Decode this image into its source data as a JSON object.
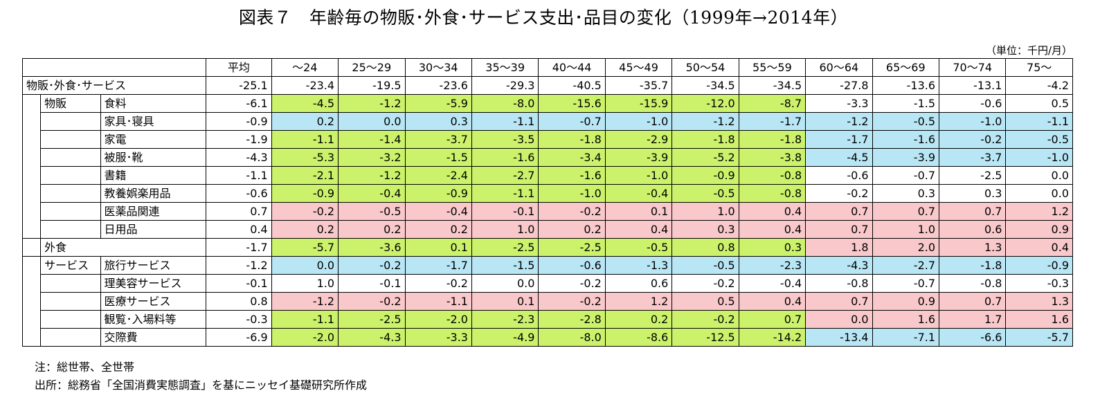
{
  "title": "図表７　年齢毎の物販･外食･サービス支出･品目の変化（1999年→2014年）",
  "unit": "（単位：千円/月）",
  "headers": [
    "平均",
    "～24",
    "25～29",
    "30～34",
    "35～39",
    "40～44",
    "45～49",
    "50～54",
    "55～59",
    "60～64",
    "65～69",
    "70～74",
    "75～"
  ],
  "rows": [
    {
      "group": "物販･外食･サービス",
      "values": [
        "-25.1",
        "-23.4",
        "-19.5",
        "-23.6",
        "-29.3",
        "-40.5",
        "-35.7",
        "-34.5",
        "-34.5",
        "-27.8",
        "-13.6",
        "-13.1",
        "-4.2"
      ]
    },
    {
      "group": "物販",
      "item": "食料",
      "values": [
        "-6.1",
        "-4.5",
        "-1.2",
        "-5.9",
        "-8.0",
        "-15.6",
        "-15.9",
        "-12.0",
        "-8.7",
        "-3.3",
        "-1.5",
        "-0.6",
        "0.5"
      ]
    },
    {
      "item": "家具･寝具",
      "values": [
        "-0.9",
        "0.2",
        "0.0",
        "0.3",
        "-1.1",
        "-0.7",
        "-1.0",
        "-1.2",
        "-1.7",
        "-1.2",
        "-0.5",
        "-1.0",
        "-1.1"
      ]
    },
    {
      "item": "家電",
      "values": [
        "-1.9",
        "-1.1",
        "-1.4",
        "-3.7",
        "-3.5",
        "-1.8",
        "-2.9",
        "-1.8",
        "-1.8",
        "-1.7",
        "-1.6",
        "-0.2",
        "-0.5"
      ]
    },
    {
      "item": "被服･靴",
      "values": [
        "-4.3",
        "-5.3",
        "-3.2",
        "-1.5",
        "-1.6",
        "-3.4",
        "-3.9",
        "-5.2",
        "-3.8",
        "-4.5",
        "-3.9",
        "-3.7",
        "-1.0"
      ]
    },
    {
      "item": "書籍",
      "values": [
        "-1.1",
        "-2.1",
        "-1.2",
        "-2.4",
        "-2.7",
        "-1.6",
        "-1.0",
        "-0.9",
        "-0.8",
        "-0.6",
        "-0.7",
        "-2.5",
        "0.0"
      ]
    },
    {
      "item": "教養娯楽用品",
      "values": [
        "-0.6",
        "-0.9",
        "-0.4",
        "-0.9",
        "-1.1",
        "-1.0",
        "-0.4",
        "-0.5",
        "-0.8",
        "-0.2",
        "0.3",
        "0.3",
        "0.0"
      ]
    },
    {
      "item": "医薬品関連",
      "values": [
        "0.7",
        "-0.2",
        "-0.5",
        "-0.4",
        "-0.1",
        "-0.2",
        "0.1",
        "1.0",
        "0.4",
        "0.7",
        "0.7",
        "0.7",
        "1.2"
      ]
    },
    {
      "item": "日用品",
      "values": [
        "0.4",
        "0.2",
        "0.2",
        "0.2",
        "1.0",
        "0.2",
        "0.4",
        "0.3",
        "0.4",
        "0.7",
        "1.0",
        "0.6",
        "0.9"
      ]
    },
    {
      "group": "外食",
      "values": [
        "-1.7",
        "-5.7",
        "-3.6",
        "0.1",
        "-2.5",
        "-2.5",
        "-0.5",
        "0.8",
        "0.3",
        "1.8",
        "2.0",
        "1.3",
        "0.4"
      ]
    },
    {
      "group": "サービス",
      "item": "旅行サービス",
      "values": [
        "-1.2",
        "0.0",
        "-0.2",
        "-1.7",
        "-1.5",
        "-0.6",
        "-1.3",
        "-0.5",
        "-2.3",
        "-4.3",
        "-2.7",
        "-1.8",
        "-0.9"
      ]
    },
    {
      "item": "理美容サービス",
      "values": [
        "-0.1",
        "1.0",
        "-0.1",
        "-0.2",
        "0.0",
        "-0.2",
        "0.6",
        "-0.2",
        "-0.4",
        "-0.8",
        "-0.7",
        "-0.8",
        "-0.3"
      ]
    },
    {
      "item": "医療サービス",
      "values": [
        "0.8",
        "-1.2",
        "-0.2",
        "-1.1",
        "0.1",
        "-0.2",
        "1.2",
        "0.5",
        "0.4",
        "0.7",
        "0.9",
        "0.7",
        "1.3"
      ]
    },
    {
      "item": "観覧･入場料等",
      "values": [
        "-0.3",
        "-1.1",
        "-2.5",
        "-2.0",
        "-2.3",
        "-2.8",
        "0.2",
        "-0.2",
        "0.7",
        "0.0",
        "1.6",
        "1.7",
        "1.6"
      ]
    },
    {
      "item": "交際費",
      "values": [
        "-6.9",
        "-2.0",
        "-4.3",
        "-3.3",
        "-4.9",
        "-8.0",
        "-8.6",
        "-12.5",
        "-14.2",
        "-13.4",
        "-7.1",
        "-6.6",
        "-5.7"
      ]
    }
  ],
  "highlight": {
    "green": "#ccf26b",
    "blue": "#b9e6f5",
    "pink": "#f8c8cb",
    "row_styles": [
      "",
      "g",
      "b",
      "g",
      "g",
      "g",
      "g",
      "p",
      "p",
      "g",
      "b",
      "",
      "p",
      "g",
      "g"
    ],
    "row_styles_60plus": [
      "",
      "",
      "b",
      "b",
      "b",
      "",
      "",
      "p",
      "p",
      "p",
      "b",
      "",
      "p",
      "p",
      "b"
    ]
  },
  "notes": [
    "注：総世帯、全世帯",
    "出所：総務省「全国消費実態調査」を基にニッセイ基礎研究所作成"
  ],
  "chart_data": {
    "type": "table",
    "title": "図表７　年齢毎の物販･外食･サービス支出･品目の変化（1999年→2014年）",
    "unit": "千円/月",
    "columns": [
      "平均",
      "～24",
      "25～29",
      "30～34",
      "35～39",
      "40～44",
      "45～49",
      "50～54",
      "55～59",
      "60～64",
      "65～69",
      "70～74",
      "75～"
    ],
    "rows": [
      {
        "label": "物販･外食･サービス",
        "values": [
          -25.1,
          -23.4,
          -19.5,
          -23.6,
          -29.3,
          -40.5,
          -35.7,
          -34.5,
          -34.5,
          -27.8,
          -13.6,
          -13.1,
          -4.2
        ]
      },
      {
        "label": "食料",
        "values": [
          -6.1,
          -4.5,
          -1.2,
          -5.9,
          -8.0,
          -15.6,
          -15.9,
          -12.0,
          -8.7,
          -3.3,
          -1.5,
          -0.6,
          0.5
        ]
      },
      {
        "label": "家具･寝具",
        "values": [
          -0.9,
          0.2,
          0.0,
          0.3,
          -1.1,
          -0.7,
          -1.0,
          -1.2,
          -1.7,
          -1.2,
          -0.5,
          -1.0,
          -1.1
        ]
      },
      {
        "label": "家電",
        "values": [
          -1.9,
          -1.1,
          -1.4,
          -3.7,
          -3.5,
          -1.8,
          -2.9,
          -1.8,
          -1.8,
          -1.7,
          -1.6,
          -0.2,
          -0.5
        ]
      },
      {
        "label": "被服･靴",
        "values": [
          -4.3,
          -5.3,
          -3.2,
          -1.5,
          -1.6,
          -3.4,
          -3.9,
          -5.2,
          -3.8,
          -4.5,
          -3.9,
          -3.7,
          -1.0
        ]
      },
      {
        "label": "書籍",
        "values": [
          -1.1,
          -2.1,
          -1.2,
          -2.4,
          -2.7,
          -1.6,
          -1.0,
          -0.9,
          -0.8,
          -0.6,
          -0.7,
          -2.5,
          0.0
        ]
      },
      {
        "label": "教養娯楽用品",
        "values": [
          -0.6,
          -0.9,
          -0.4,
          -0.9,
          -1.1,
          -1.0,
          -0.4,
          -0.5,
          -0.8,
          -0.2,
          0.3,
          0.3,
          0.0
        ]
      },
      {
        "label": "医薬品関連",
        "values": [
          0.7,
          -0.2,
          -0.5,
          -0.4,
          -0.1,
          -0.2,
          0.1,
          1.0,
          0.4,
          0.7,
          0.7,
          0.7,
          1.2
        ]
      },
      {
        "label": "日用品",
        "values": [
          0.4,
          0.2,
          0.2,
          0.2,
          1.0,
          0.2,
          0.4,
          0.3,
          0.4,
          0.7,
          1.0,
          0.6,
          0.9
        ]
      },
      {
        "label": "外食",
        "values": [
          -1.7,
          -5.7,
          -3.6,
          0.1,
          -2.5,
          -2.5,
          -0.5,
          0.8,
          0.3,
          1.8,
          2.0,
          1.3,
          0.4
        ]
      },
      {
        "label": "旅行サービス",
        "values": [
          -1.2,
          0.0,
          -0.2,
          -1.7,
          -1.5,
          -0.6,
          -1.3,
          -0.5,
          -2.3,
          -4.3,
          -2.7,
          -1.8,
          -0.9
        ]
      },
      {
        "label": "理美容サービス",
        "values": [
          -0.1,
          1.0,
          -0.1,
          -0.2,
          0.0,
          -0.2,
          0.6,
          -0.2,
          -0.4,
          -0.8,
          -0.7,
          -0.8,
          -0.3
        ]
      },
      {
        "label": "医療サービス",
        "values": [
          0.8,
          -1.2,
          -0.2,
          -1.1,
          0.1,
          -0.2,
          1.2,
          0.5,
          0.4,
          0.7,
          0.9,
          0.7,
          1.3
        ]
      },
      {
        "label": "観覧･入場料等",
        "values": [
          -0.3,
          -1.1,
          -2.5,
          -2.0,
          -2.3,
          -2.8,
          0.2,
          -0.2,
          0.7,
          0.0,
          1.6,
          1.7,
          1.6
        ]
      },
      {
        "label": "交際費",
        "values": [
          -6.9,
          -2.0,
          -4.3,
          -3.3,
          -4.9,
          -8.0,
          -8.6,
          -12.5,
          -14.2,
          -13.4,
          -7.1,
          -6.6,
          -5.7
        ]
      }
    ]
  }
}
